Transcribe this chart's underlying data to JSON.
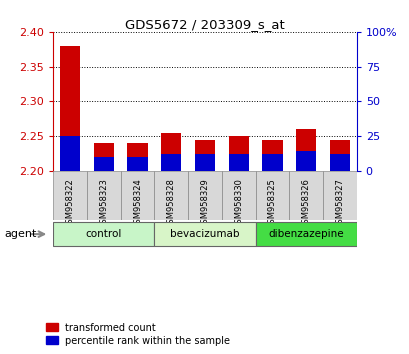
{
  "title": "GDS5672 / 203309_s_at",
  "samples": [
    "GSM958322",
    "GSM958323",
    "GSM958324",
    "GSM958328",
    "GSM958329",
    "GSM958330",
    "GSM958325",
    "GSM958326",
    "GSM958327"
  ],
  "transformed_count": [
    2.38,
    2.24,
    2.24,
    2.255,
    2.245,
    2.25,
    2.245,
    2.26,
    2.245
  ],
  "percentile_rank": [
    25,
    10,
    10,
    12,
    12,
    12,
    12,
    14,
    12
  ],
  "ylim_left": [
    2.2,
    2.4
  ],
  "ylim_right": [
    0,
    100
  ],
  "yticks_left": [
    2.2,
    2.25,
    2.3,
    2.35,
    2.4
  ],
  "yticks_right": [
    0,
    25,
    50,
    75,
    100
  ],
  "groups": [
    {
      "label": "control",
      "indices": [
        0,
        1,
        2
      ],
      "color": "#c8f5c8"
    },
    {
      "label": "bevacizumab",
      "indices": [
        3,
        4,
        5
      ],
      "color": "#d8f5c8"
    },
    {
      "label": "dibenzazepine",
      "indices": [
        6,
        7,
        8
      ],
      "color": "#44dd44"
    }
  ],
  "bar_color_red": "#cc0000",
  "bar_color_blue": "#0000cc",
  "bar_width": 0.6,
  "agent_label": "agent",
  "legend_red": "transformed count",
  "legend_blue": "percentile rank within the sample",
  "tick_color_left": "#cc0000",
  "tick_color_right": "#0000cc",
  "base_value": 2.2
}
